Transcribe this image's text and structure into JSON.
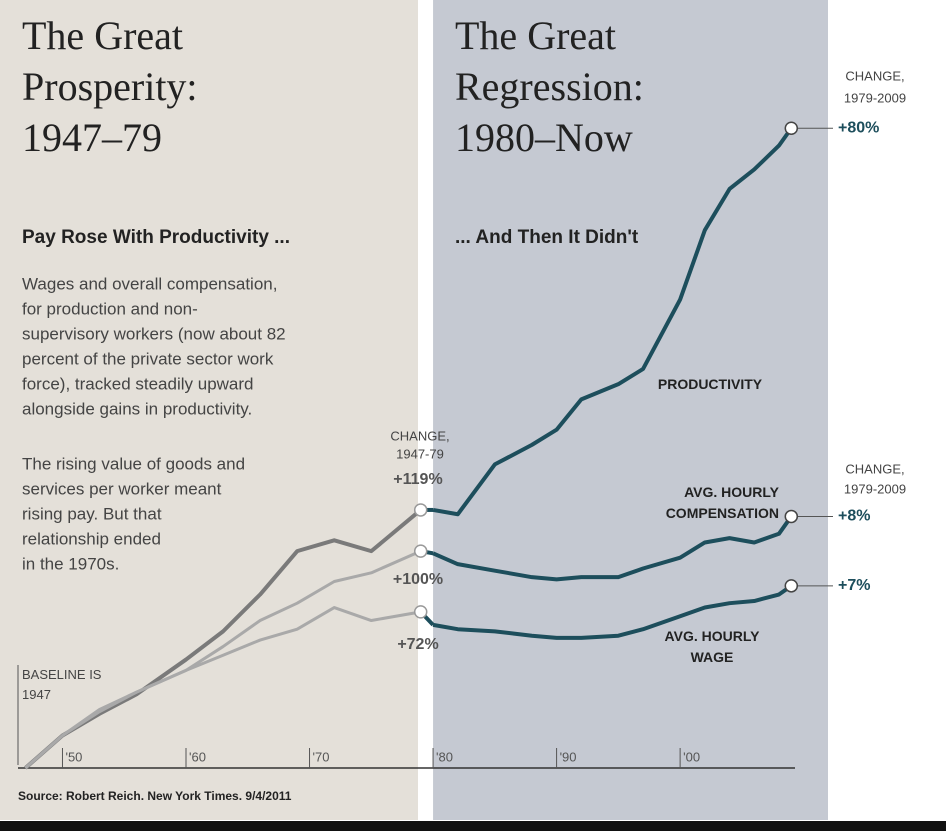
{
  "chart_data": {
    "type": "line",
    "panels": [
      {
        "title_lines": [
          "The Great",
          "Prosperity:",
          "1947–79"
        ],
        "subtitle": "Pay Rose With Productivity ...",
        "notes": [
          [
            "Wages and overall compensation,",
            "for production and non-",
            "supervisory workers (now about 82",
            "percent of the private sector work",
            "force), tracked steadily upward",
            "alongside gains in productivity."
          ],
          [
            "The rising value of goods and",
            "services per worker meant",
            "rising pay. But that",
            "relationship ended",
            "in the 1970s."
          ]
        ]
      },
      {
        "title_lines": [
          "The Great",
          "Regression:",
          "1980–Now"
        ],
        "subtitle": "... And Then It Didn't",
        "notes": []
      }
    ],
    "shade_from": 1980,
    "baseline_label": "BASELINE IS 1947",
    "source": "Source: Robert Reich. New York Times. 9/4/2011",
    "change_headings": {
      "early": [
        "CHANGE,",
        "1947-79"
      ],
      "late": [
        "CHANGE,",
        "1979-2009"
      ]
    },
    "xlim": [
      1946.4,
      2009.3
    ],
    "ylim": [
      0,
      350
    ],
    "xticks": [
      {
        "value": 1950,
        "label": "'50"
      },
      {
        "value": 1960,
        "label": "'60"
      },
      {
        "value": 1970,
        "label": "'70"
      },
      {
        "value": 1980,
        "label": "'80"
      },
      {
        "value": 1990,
        "label": "'90"
      },
      {
        "value": 2000,
        "label": "'00"
      }
    ],
    "x": [
      1947,
      1950,
      1953,
      1956,
      1960,
      1963,
      1966,
      1969,
      1972,
      1975,
      1979,
      1980,
      1982,
      1985,
      1988,
      1990,
      1992,
      1995,
      1997,
      2000,
      2002,
      2004,
      2006,
      2008,
      2009
    ],
    "series": [
      {
        "name": "PRODUCTIVITY",
        "color": "#1d4e5c",
        "early_color": "#7a7a7a",
        "values": [
          0,
          15,
          25,
          34,
          50,
          63,
          80,
          100,
          105,
          100,
          119,
          119,
          117,
          140,
          149,
          156,
          170,
          177,
          184,
          216,
          248,
          267,
          276,
          287,
          295
        ],
        "change_early": {
          "value": 119,
          "label": "+119%"
        },
        "change_late": {
          "value": 80,
          "label": "+80%"
        }
      },
      {
        "name": "AVG. HOURLY COMPENSATION",
        "color": "#1d4e5c",
        "early_color": "#a9a9a9",
        "values": [
          0,
          15,
          26,
          35,
          45,
          56,
          68,
          76,
          86,
          90,
          100,
          99,
          94,
          91,
          88,
          87,
          88,
          88,
          92,
          97,
          104,
          106,
          104,
          108,
          116
        ],
        "change_early": {
          "value": 100,
          "label": "+100%"
        },
        "change_late": {
          "value": 8,
          "label": "+8%"
        }
      },
      {
        "name": "AVG. HOURLY WAGE",
        "color": "#1d4e5c",
        "early_color": "#a9a9a9",
        "values": [
          0,
          15,
          27,
          35,
          45,
          52,
          59,
          64,
          74,
          68,
          72,
          66,
          64,
          63,
          61,
          60,
          60,
          61,
          64,
          70,
          74,
          76,
          77,
          80,
          84
        ],
        "change_early": {
          "value": 72,
          "label": "+72%"
        },
        "change_late": {
          "value": 7,
          "label": "+7%"
        }
      }
    ]
  }
}
